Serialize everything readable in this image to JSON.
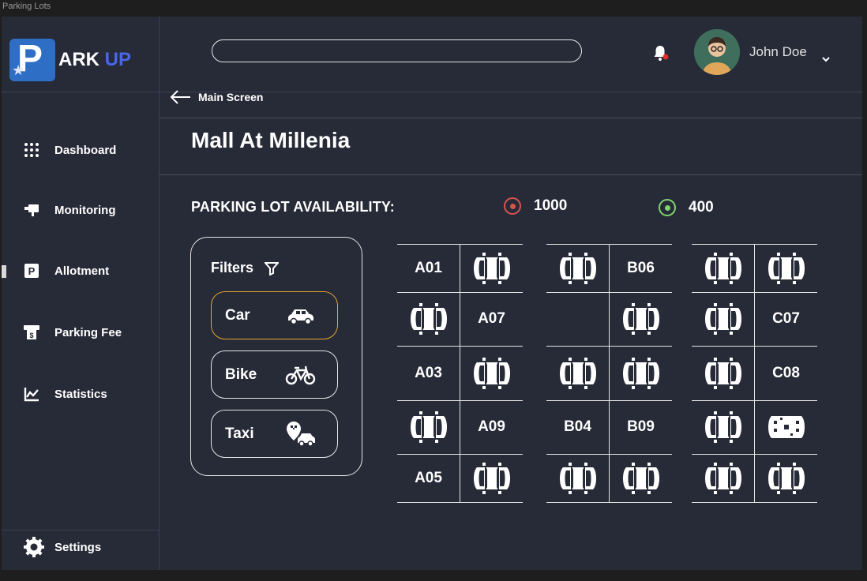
{
  "window": {
    "title": "Parking Lots"
  },
  "brand": {
    "letter": "P",
    "name_a": "ARK",
    "name_b": "UP"
  },
  "sidebar": {
    "items": [
      {
        "label": "Dashboard",
        "icon": "grid-icon"
      },
      {
        "label": "Monitoring",
        "icon": "monitor-icon"
      },
      {
        "label": "Allotment",
        "icon": "parking-icon"
      },
      {
        "label": "Parking Fee",
        "icon": "fee-icon"
      },
      {
        "label": "Statistics",
        "icon": "chart-icon"
      }
    ],
    "settings_label": "Settings"
  },
  "header": {
    "username": "John Doe",
    "search_value": ""
  },
  "breadcrumb": {
    "back_label": "Main Screen"
  },
  "page": {
    "title": "Mall At Millenia"
  },
  "availability": {
    "label": "PARKING LOT AVAILABILITY:",
    "occupied": "1000",
    "free": "400",
    "occupied_color": "#d9534f",
    "free_color": "#7ed56f"
  },
  "filters": {
    "title": "Filters",
    "options": [
      {
        "label": "Car",
        "icon": "car-icon",
        "selected": true
      },
      {
        "label": "Bike",
        "icon": "bicycle-icon",
        "selected": false
      },
      {
        "label": "Taxi",
        "icon": "taxi-icon",
        "selected": false
      }
    ]
  },
  "lots": {
    "A": [
      [
        "A01",
        "car"
      ],
      [
        "car",
        "A07"
      ],
      [
        "A03",
        "car"
      ],
      [
        "car",
        "A09"
      ],
      [
        "A05",
        "car"
      ]
    ],
    "B": [
      [
        "car",
        "B06"
      ],
      [
        "",
        "car"
      ],
      [
        "car",
        "car"
      ],
      [
        "B04",
        "B09"
      ],
      [
        "car",
        "car"
      ]
    ],
    "C": [
      [
        "car",
        "car"
      ],
      [
        "car",
        "C07"
      ],
      [
        "car",
        "C08"
      ],
      [
        "car",
        "taxi"
      ],
      [
        "car",
        "car"
      ]
    ]
  }
}
